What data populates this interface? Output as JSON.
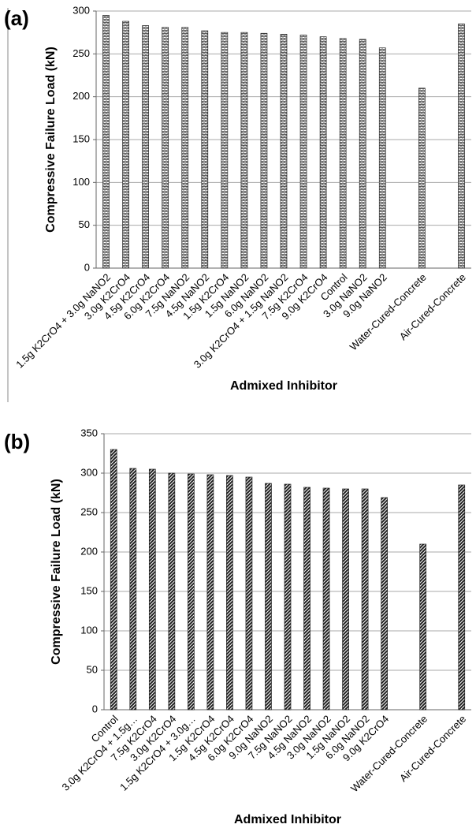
{
  "chart_data": [
    {
      "type": "bar",
      "label": "(a)",
      "y_label": "Compressive Failure Load (kN)",
      "x_label": "Admixed Inhibitor",
      "pattern": "brick",
      "categories": [
        "1.5g K2CrO4 + 3.0g NaNO2",
        "3.0g K2CrO4",
        "4.5g K2CrO4",
        "6.0g K2CrO4",
        "7.5g NaNO2",
        "4.5g NaNO2",
        "1.5g K2CrO4",
        "1.5g NaNO2",
        "6.0g NaNO2",
        "3.0g K2CrO4 + 1.5g NaNO2",
        "7.5g K2CrO4",
        "9.0g K2CrO4",
        "Control",
        "3.0g NaNO2",
        "9.0g NaNO2",
        null,
        "Water-Cured-Concrete",
        null,
        "Air-Cured-Concrete"
      ],
      "values": [
        295,
        288,
        283,
        281,
        281,
        277,
        275,
        275,
        274,
        273,
        272,
        270,
        268,
        267,
        257,
        null,
        210,
        null,
        285
      ],
      "ylim": [
        0,
        300
      ],
      "yticks": [
        0,
        50,
        100,
        150,
        200,
        250,
        300
      ],
      "grid": true
    },
    {
      "type": "bar",
      "label": "(b)",
      "y_label": "Compressive Failure Load (kN)",
      "x_label": "Admixed Inhibitor",
      "pattern": "hatch",
      "categories": [
        "Control",
        "3.0g K2CrO4 + 1.5g…",
        "7.5g K2CrO4",
        "3.0g K2CrO4",
        "1.5g K2CrO4 + 3.0g…",
        "1.5g K2CrO4",
        "4.5g K2CrO4",
        "6.0g K2CrO4",
        "9.0g NaNO2",
        "7.5g NaNO2",
        "4.5g NaNO2",
        "3.0g NaNO2",
        "1.5g NaNO2",
        "6.0g NaNO2",
        "9.0g K2CrO4",
        null,
        "Water-Cured-Concrete",
        null,
        "Air-Cured-Concrete"
      ],
      "values": [
        330,
        306,
        305,
        300,
        299,
        298,
        297,
        295,
        287,
        286,
        282,
        281,
        280,
        280,
        269,
        null,
        210,
        null,
        285
      ],
      "ylim": [
        0,
        350
      ],
      "yticks": [
        0,
        50,
        100,
        150,
        200,
        250,
        300,
        350
      ],
      "grid": true
    }
  ]
}
